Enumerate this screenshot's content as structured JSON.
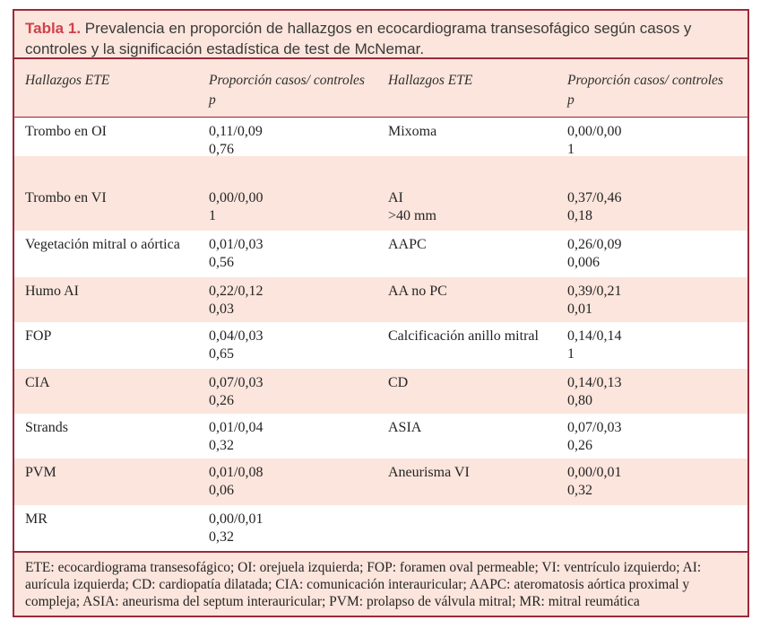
{
  "table": {
    "label": "Tabla 1.",
    "title": "Prevalencia en proporción de hallazgos en ecocardiograma transesofágico según casos y controles y la significación estadística de test de McNemar.",
    "header": {
      "col_finding_left": "Hallazgos ETE",
      "col_proportion_left": "Proporción casos/ controles",
      "col_p_left": "p",
      "col_finding_right": "Hallazgos ETE",
      "col_proportion_right": "Proporción casos/ controles",
      "col_p_right": "p"
    },
    "rows": [
      {
        "left": {
          "finding": "Trombo en OI",
          "proportion": "0,11/0,09",
          "p": "0,76"
        },
        "right": {
          "finding": "Mixoma",
          "proportion": "0,00/0,00",
          "p": "1"
        }
      },
      {
        "left": {
          "finding": "Trombo en VI",
          "proportion": "0,00/0,00",
          "p": "1"
        },
        "right": {
          "finding": "AI",
          "finding2": ">40 mm",
          "proportion": "0,37/0,46",
          "p": "0,18"
        }
      },
      {
        "left": {
          "finding": "Vegetación mitral o aórtica",
          "proportion": "0,01/0,03",
          "p": "0,56"
        },
        "right": {
          "finding": "AAPC",
          "proportion": "0,26/0,09",
          "p": "0,006"
        }
      },
      {
        "left": {
          "finding": "Humo AI",
          "proportion": "0,22/0,12",
          "p": "0,03"
        },
        "right": {
          "finding": "AA no PC",
          "proportion": "0,39/0,21",
          "p": "0,01"
        }
      },
      {
        "left": {
          "finding": "FOP",
          "proportion": "0,04/0,03",
          "p": "0,65"
        },
        "right": {
          "finding": "Calcificación anillo mitral",
          "proportion": "0,14/0,14",
          "p": "1"
        }
      },
      {
        "left": {
          "finding": "CIA",
          "proportion": "0,07/0,03",
          "p": "0,26"
        },
        "right": {
          "finding": "CD",
          "proportion": "0,14/0,13",
          "p": "0,80"
        }
      },
      {
        "left": {
          "finding": "Strands",
          "proportion": "0,01/0,04",
          "p": "0,32"
        },
        "right": {
          "finding": "ASIA",
          "proportion": "0,07/0,03",
          "p": "0,26"
        }
      },
      {
        "left": {
          "finding": "PVM",
          "proportion": "0,01/0,08",
          "p": "0,06"
        },
        "right": {
          "finding": "Aneurisma VI",
          "proportion": "0,00/0,01",
          "p": "0,32"
        }
      },
      {
        "left": {
          "finding": "MR",
          "proportion": "0,00/0,01",
          "p": "0,32"
        },
        "right": {
          "finding": "",
          "proportion": "",
          "p": ""
        }
      }
    ],
    "footnote": "ETE: ecocardiograma transesofágico; OI: orejuela izquierda; FOP: foramen oval permeable; VI: ventrículo izquierdo; AI: aurícula izquierda; CD: cardiopatía dilatada; CIA: comunicación interauricular; AAPC: ateromatosis aórtica proximal y compleja; ASIA: aneurisma del septum interauricular; PVM: prolapso de válvula mitral; MR: mitral reumática",
    "colors": {
      "accent_red": "#d0414d",
      "border_maroon": "#9c2a3c",
      "pink_background": "#fbe5dc",
      "divider_crimson": "#b5314a"
    }
  }
}
